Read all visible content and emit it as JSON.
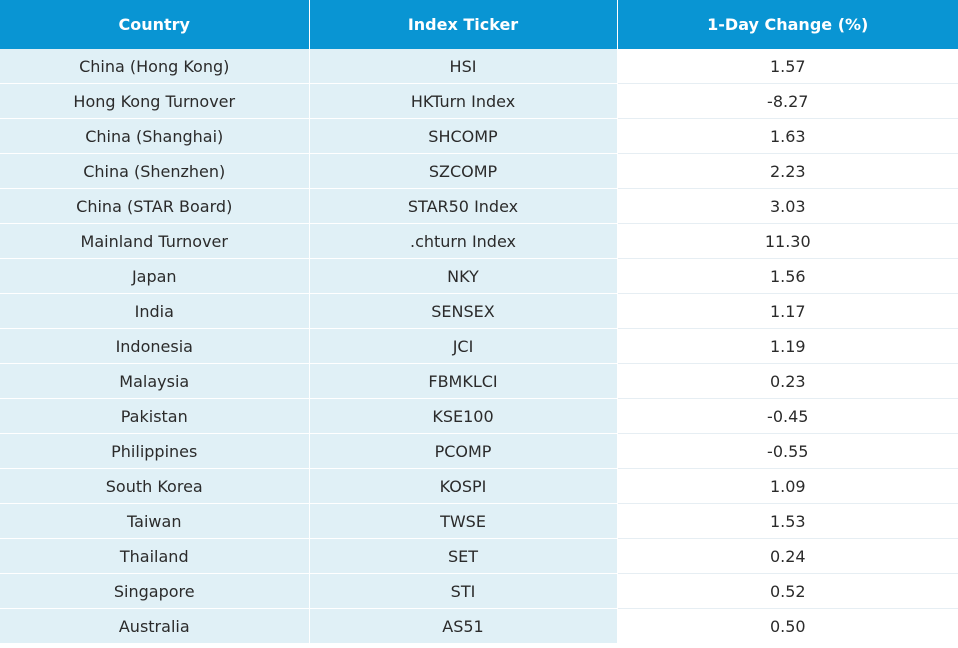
{
  "colors": {
    "header_bg": "#0995d3",
    "header_text": "#ffffff",
    "shaded_cell_bg": "#e0f0f6",
    "plain_cell_bg": "#ffffff",
    "text": "#2b2b2b"
  },
  "table": {
    "headers": [
      "Country",
      "Index Ticker",
      "1-Day Change (%)"
    ],
    "rows": [
      {
        "country": "China (Hong Kong)",
        "ticker": "HSI",
        "change": "1.57"
      },
      {
        "country": "Hong Kong Turnover",
        "ticker": "HKTurn Index",
        "change": "-8.27"
      },
      {
        "country": "China (Shanghai)",
        "ticker": "SHCOMP",
        "change": "1.63"
      },
      {
        "country": "China (Shenzhen)",
        "ticker": "SZCOMP",
        "change": "2.23"
      },
      {
        "country": "China (STAR Board)",
        "ticker": "STAR50 Index",
        "change": "3.03"
      },
      {
        "country": "Mainland Turnover",
        "ticker": ".chturn Index",
        "change": "11.30"
      },
      {
        "country": "Japan",
        "ticker": "NKY",
        "change": "1.56"
      },
      {
        "country": "India",
        "ticker": "SENSEX",
        "change": "1.17"
      },
      {
        "country": "Indonesia",
        "ticker": "JCI",
        "change": "1.19"
      },
      {
        "country": "Malaysia",
        "ticker": "FBMKLCI",
        "change": "0.23"
      },
      {
        "country": "Pakistan",
        "ticker": "KSE100",
        "change": "-0.45"
      },
      {
        "country": "Philippines",
        "ticker": "PCOMP",
        "change": "-0.55"
      },
      {
        "country": "South Korea",
        "ticker": "KOSPI",
        "change": "1.09"
      },
      {
        "country": "Taiwan",
        "ticker": "TWSE",
        "change": "1.53"
      },
      {
        "country": "Thailand",
        "ticker": "SET",
        "change": "0.24"
      },
      {
        "country": "Singapore",
        "ticker": "STI",
        "change": "0.52"
      },
      {
        "country": "Australia",
        "ticker": "AS51",
        "change": "0.50"
      }
    ]
  }
}
